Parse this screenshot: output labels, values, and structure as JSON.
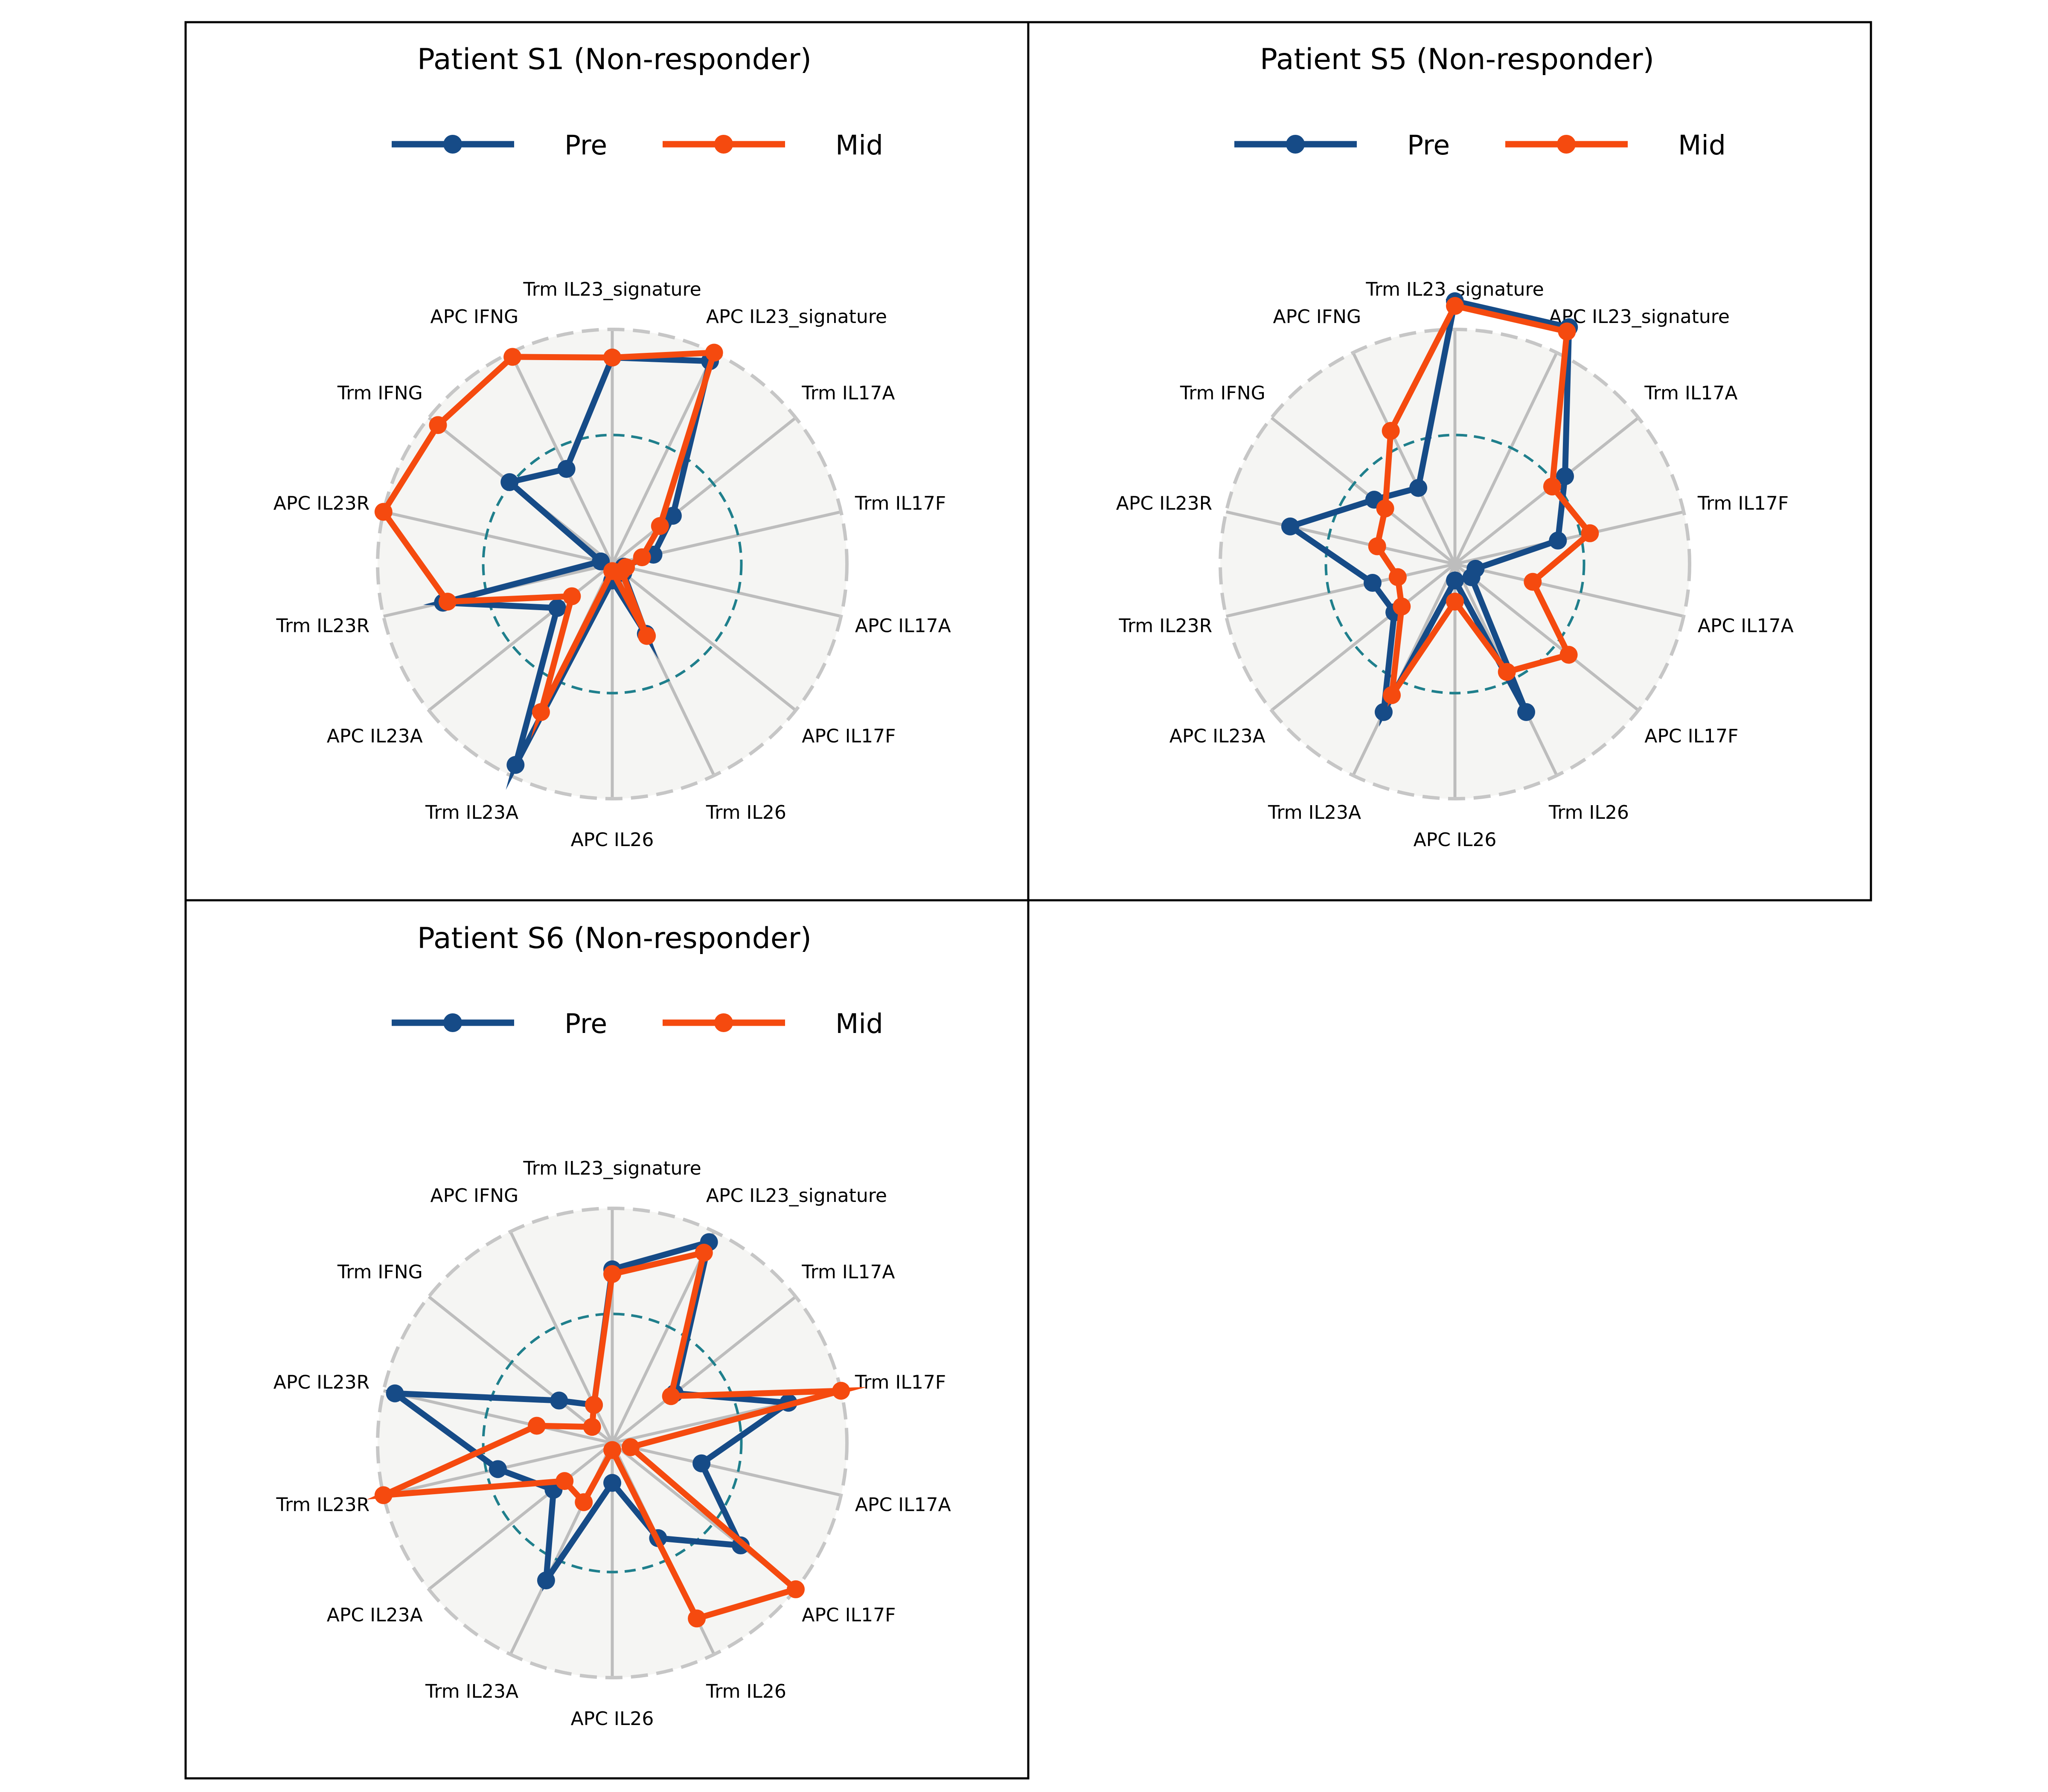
{
  "figure": {
    "colors": {
      "pre": "#164B87",
      "mid": "#F54A0F",
      "spoke": "#BDBDBD",
      "outer_ring": "#C6C6C6",
      "inner_ring": "#1F7F8C",
      "panel_fill": "#F5F5F3",
      "frame": "#000000"
    }
  },
  "chart_data": [
    {
      "type": "radar",
      "title": "Patient S1 (Non-responder)",
      "legend": [
        "Pre",
        "Mid"
      ],
      "legend_position": "top",
      "axes": [
        "Trm IL23_signature",
        "APC IL23_signature",
        "Trm IL17A",
        "Trm IL17F",
        "APC IL17A",
        "APC IL17F",
        "Trm IL26",
        "APC IL26",
        "Trm IL23A",
        "APC IL23A",
        "Trm IL23R",
        "APC IL23R",
        "Trm IFNG",
        "APC IFNG"
      ],
      "range": [
        0,
        1
      ],
      "reference_ring": 0.55,
      "series": [
        {
          "name": "Pre",
          "values": [
            0.88,
            0.96,
            0.33,
            0.18,
            0.05,
            0.06,
            0.33,
            0.07,
            0.95,
            0.3,
            0.74,
            0.05,
            0.56,
            0.45
          ]
        },
        {
          "name": "Mid",
          "values": [
            0.88,
            1.0,
            0.26,
            0.13,
            0.06,
            0.05,
            0.34,
            0.03,
            0.7,
            0.22,
            0.72,
            1.0,
            0.95,
            0.98
          ]
        }
      ]
    },
    {
      "type": "radar",
      "title": "Patient S5 (Non-responder)",
      "legend": [
        "Pre",
        "Mid"
      ],
      "legend_position": "top",
      "axes": [
        "Trm IL23_signature",
        "APC IL23_signature",
        "Trm IL17A",
        "Trm IL17F",
        "APC IL17A",
        "APC IL17F",
        "Trm IL26",
        "APC IL26",
        "Trm IL23A",
        "APC IL23A",
        "Trm IL23R",
        "APC IL23R",
        "Trm IFNG",
        "APC IFNG"
      ],
      "range": [
        0,
        1
      ],
      "reference_ring": 0.55,
      "series": [
        {
          "name": "Pre",
          "values": [
            1.12,
            1.12,
            0.6,
            0.45,
            0.09,
            0.09,
            0.7,
            0.07,
            0.7,
            0.33,
            0.36,
            0.72,
            0.44,
            0.36
          ]
        },
        {
          "name": "Mid",
          "values": [
            1.1,
            1.1,
            0.53,
            0.59,
            0.34,
            0.62,
            0.51,
            0.16,
            0.62,
            0.29,
            0.25,
            0.34,
            0.38,
            0.63
          ]
        }
      ]
    },
    {
      "type": "radar",
      "title": "Patient S6 (Non-responder)",
      "legend": [
        "Pre",
        "Mid"
      ],
      "legend_position": "top",
      "axes": [
        "Trm IL23_signature",
        "APC IL23_signature",
        "Trm IL17A",
        "Trm IL17F",
        "APC IL17A",
        "APC IL17F",
        "Trm IL26",
        "APC IL26",
        "Trm IL23A",
        "APC IL23A",
        "Trm IL23R",
        "APC IL23R",
        "Trm IFNG",
        "APC IFNG"
      ],
      "range": [
        0,
        1
      ],
      "reference_ring": 0.55,
      "series": [
        {
          "name": "Pre",
          "values": [
            0.74,
            0.95,
            0.34,
            0.77,
            0.39,
            0.7,
            0.45,
            0.17,
            0.65,
            0.32,
            0.5,
            0.95,
            0.29,
            0.18
          ]
        },
        {
          "name": "Mid",
          "values": [
            0.72,
            0.9,
            0.32,
            1.0,
            0.08,
            1.0,
            0.83,
            0.03,
            0.28,
            0.26,
            1.0,
            0.33,
            0.11,
            0.18
          ]
        }
      ]
    }
  ]
}
